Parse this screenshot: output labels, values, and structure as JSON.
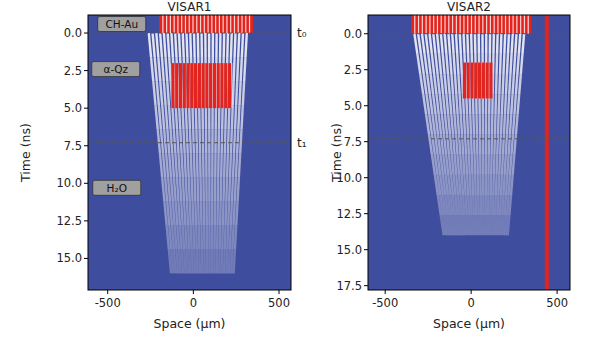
{
  "chart_data": [
    {
      "type": "image",
      "title": "VISAR1",
      "x_label": "Space (μm)",
      "y_label": "Time (ns)",
      "xlim": [
        -615,
        570
      ],
      "ylim": [
        17.1,
        -1.2
      ],
      "xticks": [
        -500,
        0,
        500
      ],
      "yticks": [
        {
          "value": 0,
          "label": "0.0"
        },
        {
          "value": 2.5,
          "label": "2.5"
        },
        {
          "value": 5,
          "label": "5.0"
        },
        {
          "value": 7.5,
          "label": "7.5"
        },
        {
          "value": 10,
          "label": "10.0"
        },
        {
          "value": 12.5,
          "label": "12.5"
        },
        {
          "value": 15,
          "label": "15.0"
        }
      ],
      "markers": [
        {
          "value": 0,
          "label": "t₀"
        },
        {
          "value": 7.3,
          "label": "t₁"
        }
      ],
      "annotations": [
        {
          "text": "CH-Au",
          "x": -418,
          "y": -0.6
        },
        {
          "text": "α-Qz",
          "x": -453,
          "y": 2.4
        },
        {
          "text": "H₂O",
          "x": -447,
          "y": 10.3
        }
      ],
      "saturated": {
        "x": [
          -200,
          350
        ],
        "y": [
          -1.2,
          0
        ]
      },
      "fringes": {
        "top": [
          -260,
          320
        ],
        "bottom": [
          -130,
          240
        ],
        "y": [
          0,
          16
        ],
        "spacing": 22
      },
      "hot_region": {
        "x": [
          -130,
          230
        ],
        "y": [
          2,
          5
        ]
      }
    },
    {
      "type": "image",
      "title": "VISAR2",
      "x_label": "Space (μm)",
      "y_label": "Time (ns)",
      "xlim": [
        -600,
        575
      ],
      "ylim": [
        17.8,
        -1.3
      ],
      "xticks": [
        -500,
        0,
        500
      ],
      "yticks": [
        {
          "value": 0,
          "label": "0.0"
        },
        {
          "value": 2.5,
          "label": "2.5"
        },
        {
          "value": 5,
          "label": "5.0"
        },
        {
          "value": 7.5,
          "label": "7.5"
        },
        {
          "value": 10,
          "label": "10.0"
        },
        {
          "value": 12.5,
          "label": "12.5"
        },
        {
          "value": 15,
          "label": "15.0"
        },
        {
          "value": 17.5,
          "label": "17.5"
        }
      ],
      "markers": [
        {
          "value": 0
        },
        {
          "value": 7.3
        }
      ],
      "saturated": {
        "x": [
          -350,
          350
        ],
        "y": [
          -1.3,
          0
        ]
      },
      "fringes": {
        "top": [
          -330,
          320
        ],
        "bottom": [
          -160,
          220
        ],
        "y": [
          0,
          14
        ],
        "spacing": 22
      },
      "hot_region": {
        "x": [
          -50,
          120
        ],
        "y": [
          2,
          4.5
        ]
      },
      "reference_x": 440
    }
  ]
}
